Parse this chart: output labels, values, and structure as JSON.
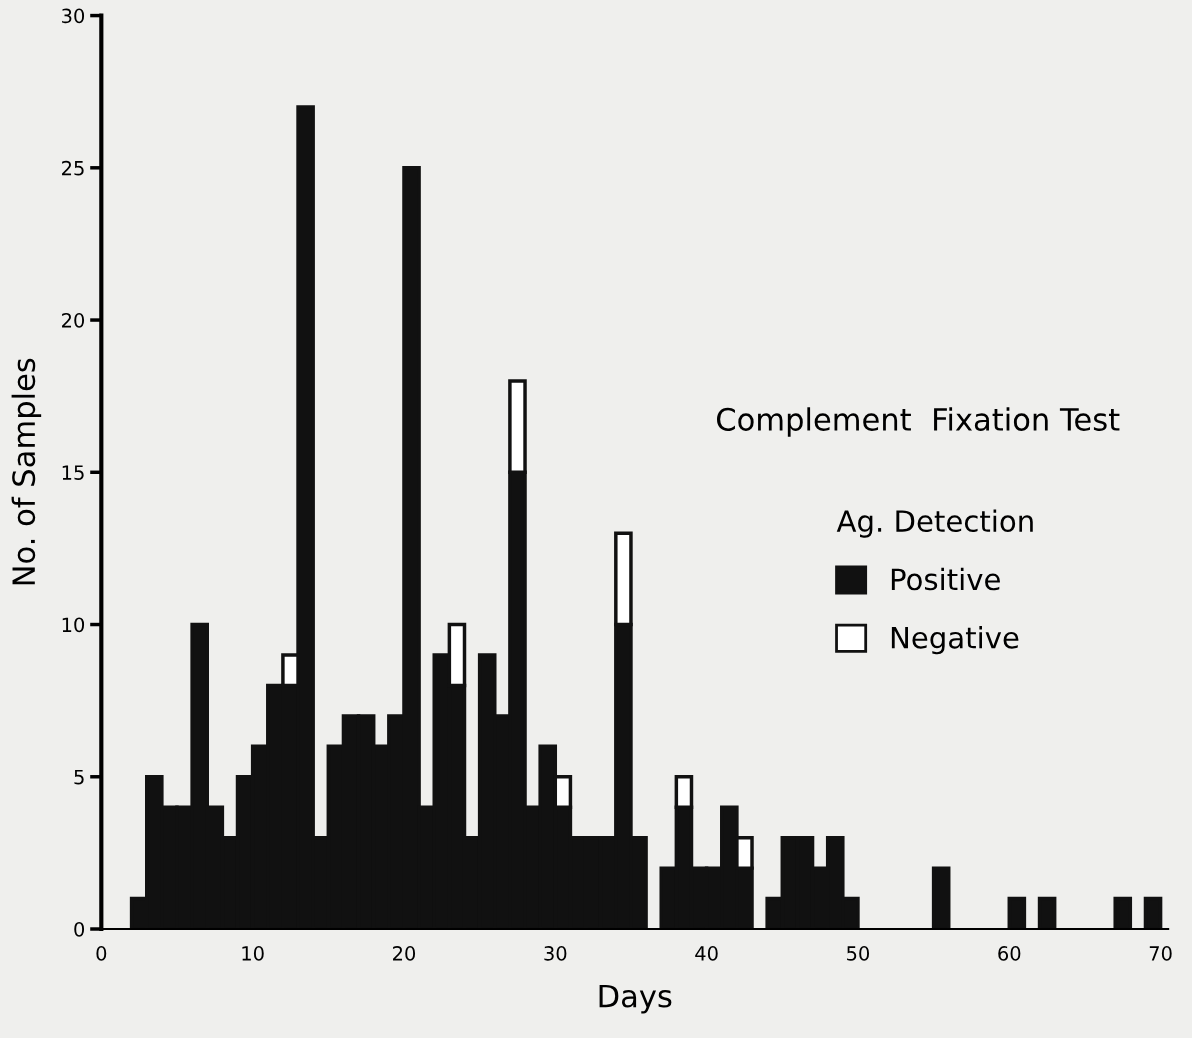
{
  "chart_data": {
    "type": "bar",
    "stacked": true,
    "xlabel": "Days",
    "ylabel": "No. of Samples",
    "legend_title": "Ag. Detection",
    "annotations": [
      "Complement  Fixation Test"
    ],
    "legend": "right",
    "x": [
      2.5,
      3.5,
      4.5,
      5.5,
      6.5,
      7.5,
      8.5,
      9.5,
      10.5,
      11.5,
      12.5,
      13.5,
      14.5,
      15.5,
      16.5,
      17.5,
      18.5,
      19.5,
      20.5,
      21.5,
      22.5,
      23.5,
      24.5,
      25.5,
      26.5,
      27.5,
      28.5,
      29.5,
      30.5,
      31.5,
      32.5,
      33.5,
      34.5,
      35.5,
      37.5,
      38.5,
      39.5,
      40.5,
      41.5,
      42.5,
      44.5,
      45.5,
      46.5,
      47.5,
      48.5,
      49.5,
      55.5,
      60.5,
      62.5,
      67.5,
      69.5
    ],
    "series": [
      {
        "name": "Positive",
        "color": "#111111",
        "values": [
          1,
          5,
          4,
          4,
          10,
          4,
          3,
          5,
          6,
          8,
          8,
          27,
          3,
          6,
          7,
          7,
          6,
          7,
          25,
          4,
          9,
          8,
          3,
          9,
          7,
          15,
          4,
          6,
          4,
          3,
          3,
          3,
          10,
          3,
          2,
          4,
          2,
          2,
          4,
          2,
          1,
          3,
          3,
          2,
          3,
          1,
          2,
          1,
          1,
          1,
          1
        ]
      },
      {
        "name": "Negative",
        "color": "#ffffff",
        "values": [
          null,
          null,
          null,
          null,
          null,
          null,
          null,
          null,
          null,
          null,
          1,
          null,
          null,
          null,
          null,
          null,
          null,
          null,
          null,
          null,
          null,
          2,
          null,
          null,
          null,
          3,
          null,
          null,
          1,
          null,
          null,
          null,
          3,
          null,
          null,
          1,
          null,
          null,
          null,
          1,
          null,
          null,
          null,
          null,
          null,
          null,
          null,
          null,
          null,
          null,
          null
        ]
      }
    ],
    "xlim": [
      0,
      70.5
    ],
    "xticks": [
      0,
      10,
      20,
      30,
      40,
      50,
      60,
      70
    ],
    "ylim": [
      0,
      30
    ],
    "yticks": [
      0,
      5,
      10,
      15,
      20,
      25,
      30
    ],
    "grid": false
  }
}
